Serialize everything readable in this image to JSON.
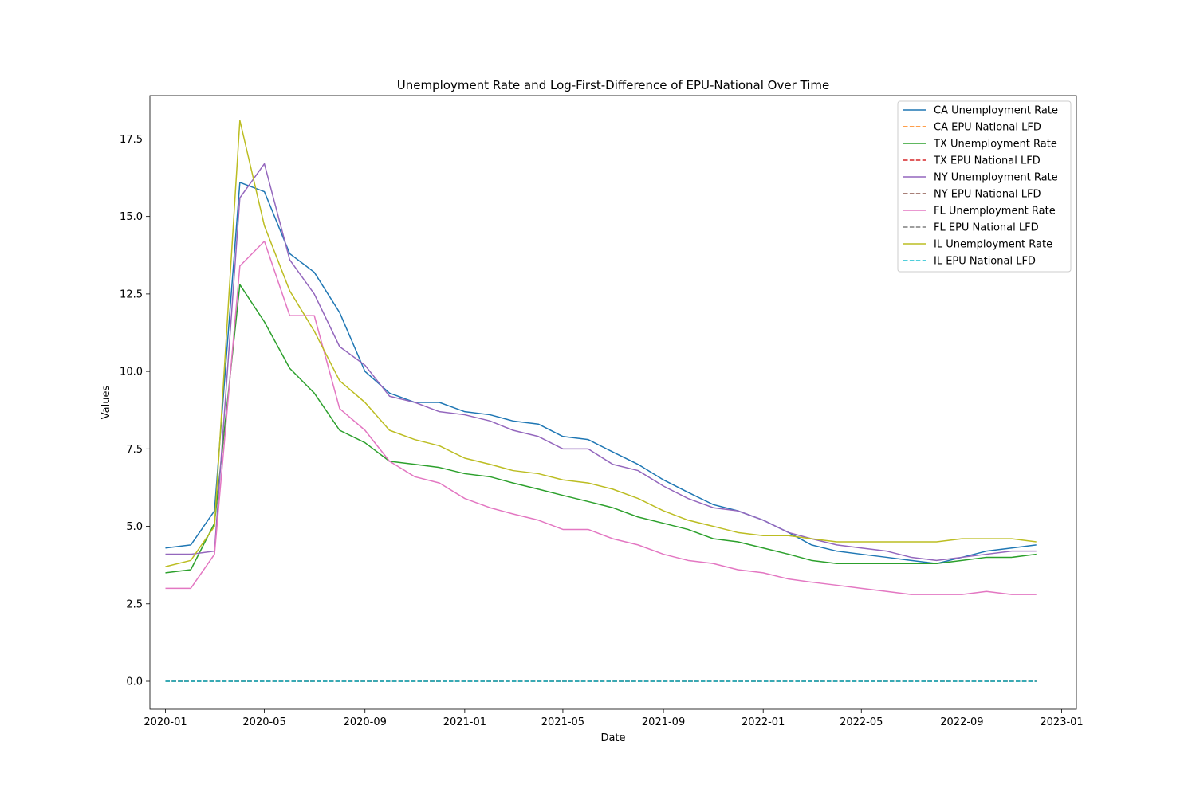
{
  "chart_data": {
    "type": "line",
    "title": "Unemployment Rate and Log-First-Difference of EPU-National Over Time",
    "xlabel": "Date",
    "ylabel": "Values",
    "x": [
      "2020-01",
      "2020-02",
      "2020-03",
      "2020-04",
      "2020-05",
      "2020-06",
      "2020-07",
      "2020-08",
      "2020-09",
      "2020-10",
      "2020-11",
      "2020-12",
      "2021-01",
      "2021-02",
      "2021-03",
      "2021-04",
      "2021-05",
      "2021-06",
      "2021-07",
      "2021-08",
      "2021-09",
      "2021-10",
      "2021-11",
      "2021-12",
      "2022-01",
      "2022-02",
      "2022-03",
      "2022-04",
      "2022-05",
      "2022-06",
      "2022-07",
      "2022-08",
      "2022-09",
      "2022-10",
      "2022-11",
      "2022-12"
    ],
    "xlim": [
      "2019-12-13",
      "2023-01-19"
    ],
    "ylim": [
      -0.9,
      18.9
    ],
    "xticks": [
      "2020-01",
      "2020-05",
      "2020-09",
      "2021-01",
      "2021-05",
      "2021-09",
      "2022-01",
      "2022-05",
      "2022-09",
      "2023-01"
    ],
    "yticks": [
      0.0,
      2.5,
      5.0,
      7.5,
      10.0,
      12.5,
      15.0,
      17.5
    ],
    "ytick_labels": [
      "0.0",
      "2.5",
      "5.0",
      "7.5",
      "10.0",
      "12.5",
      "15.0",
      "17.5"
    ],
    "grid": false,
    "legend_position": "top-right",
    "series": [
      {
        "name": "CA Unemployment Rate",
        "color": "#1f77b4",
        "dashed": false,
        "values": [
          4.3,
          4.4,
          5.5,
          16.1,
          15.8,
          13.8,
          13.2,
          11.9,
          10.0,
          9.3,
          9.0,
          9.0,
          8.7,
          8.6,
          8.4,
          8.3,
          7.9,
          7.8,
          7.4,
          7.0,
          6.5,
          6.1,
          5.7,
          5.5,
          5.2,
          4.8,
          4.4,
          4.2,
          4.1,
          4.0,
          3.9,
          3.8,
          4.0,
          4.2,
          4.3,
          4.4
        ]
      },
      {
        "name": "CA EPU National LFD",
        "color": "#ff7f0e",
        "dashed": true,
        "values": [
          0,
          0,
          0,
          0,
          0,
          0,
          0,
          0,
          0,
          0,
          0,
          0,
          0,
          0,
          0,
          0,
          0,
          0,
          0,
          0,
          0,
          0,
          0,
          0,
          0,
          0,
          0,
          0,
          0,
          0,
          0,
          0,
          0,
          0,
          0,
          0
        ]
      },
      {
        "name": "TX Unemployment Rate",
        "color": "#2ca02c",
        "dashed": false,
        "values": [
          3.5,
          3.6,
          5.1,
          12.8,
          11.6,
          10.1,
          9.3,
          8.1,
          7.7,
          7.1,
          7.0,
          6.9,
          6.7,
          6.6,
          6.4,
          6.2,
          6.0,
          5.8,
          5.6,
          5.3,
          5.1,
          4.9,
          4.6,
          4.5,
          4.3,
          4.1,
          3.9,
          3.8,
          3.8,
          3.8,
          3.8,
          3.8,
          3.9,
          4.0,
          4.0,
          4.1
        ]
      },
      {
        "name": "TX EPU National LFD",
        "color": "#d62728",
        "dashed": true,
        "values": [
          0,
          0,
          0,
          0,
          0,
          0,
          0,
          0,
          0,
          0,
          0,
          0,
          0,
          0,
          0,
          0,
          0,
          0,
          0,
          0,
          0,
          0,
          0,
          0,
          0,
          0,
          0,
          0,
          0,
          0,
          0,
          0,
          0,
          0,
          0,
          0
        ]
      },
      {
        "name": "NY Unemployment Rate",
        "color": "#9467bd",
        "dashed": false,
        "values": [
          4.1,
          4.1,
          4.2,
          15.6,
          16.7,
          13.6,
          12.5,
          10.8,
          10.2,
          9.2,
          9.0,
          8.7,
          8.6,
          8.4,
          8.1,
          7.9,
          7.5,
          7.5,
          7.0,
          6.8,
          6.3,
          5.9,
          5.6,
          5.5,
          5.2,
          4.8,
          4.6,
          4.4,
          4.3,
          4.2,
          4.0,
          3.9,
          4.0,
          4.1,
          4.2,
          4.2
        ]
      },
      {
        "name": "NY EPU National LFD",
        "color": "#8c564b",
        "dashed": true,
        "values": [
          0,
          0,
          0,
          0,
          0,
          0,
          0,
          0,
          0,
          0,
          0,
          0,
          0,
          0,
          0,
          0,
          0,
          0,
          0,
          0,
          0,
          0,
          0,
          0,
          0,
          0,
          0,
          0,
          0,
          0,
          0,
          0,
          0,
          0,
          0,
          0
        ]
      },
      {
        "name": "FL Unemployment Rate",
        "color": "#e377c2",
        "dashed": false,
        "values": [
          3.0,
          3.0,
          4.1,
          13.4,
          14.2,
          11.8,
          11.8,
          8.8,
          8.1,
          7.1,
          6.6,
          6.4,
          5.9,
          5.6,
          5.4,
          5.2,
          4.9,
          4.9,
          4.6,
          4.4,
          4.1,
          3.9,
          3.8,
          3.6,
          3.5,
          3.3,
          3.2,
          3.1,
          3.0,
          2.9,
          2.8,
          2.8,
          2.8,
          2.9,
          2.8,
          2.8
        ]
      },
      {
        "name": "FL EPU National LFD",
        "color": "#7f7f7f",
        "dashed": true,
        "values": [
          0,
          0,
          0,
          0,
          0,
          0,
          0,
          0,
          0,
          0,
          0,
          0,
          0,
          0,
          0,
          0,
          0,
          0,
          0,
          0,
          0,
          0,
          0,
          0,
          0,
          0,
          0,
          0,
          0,
          0,
          0,
          0,
          0,
          0,
          0,
          0
        ]
      },
      {
        "name": "IL Unemployment Rate",
        "color": "#bcbd22",
        "dashed": false,
        "values": [
          3.7,
          3.9,
          5.0,
          18.1,
          14.7,
          12.6,
          11.3,
          9.7,
          9.0,
          8.1,
          7.8,
          7.6,
          7.2,
          7.0,
          6.8,
          6.7,
          6.5,
          6.4,
          6.2,
          5.9,
          5.5,
          5.2,
          5.0,
          4.8,
          4.7,
          4.7,
          4.6,
          4.5,
          4.5,
          4.5,
          4.5,
          4.5,
          4.6,
          4.6,
          4.6,
          4.5
        ]
      },
      {
        "name": "IL EPU National LFD",
        "color": "#17becf",
        "dashed": true,
        "values": [
          0,
          0,
          0,
          0,
          0,
          0,
          0,
          0,
          0,
          0,
          0,
          0,
          0,
          0,
          0,
          0,
          0,
          0,
          0,
          0,
          0,
          0,
          0,
          0,
          0,
          0,
          0,
          0,
          0,
          0,
          0,
          0,
          0,
          0,
          0,
          0
        ]
      }
    ]
  }
}
